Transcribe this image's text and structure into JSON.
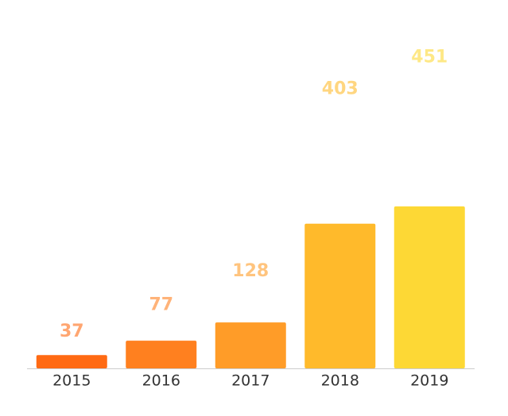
{
  "chart_data": {
    "type": "bar",
    "categories": [
      "2015",
      "2016",
      "2017",
      "2018",
      "2019"
    ],
    "values": [
      37,
      77,
      128,
      403,
      451
    ],
    "colors": [
      "#ff6a13",
      "#ff801f",
      "#ff9c28",
      "#ffba2b",
      "#fdd835"
    ]
  }
}
